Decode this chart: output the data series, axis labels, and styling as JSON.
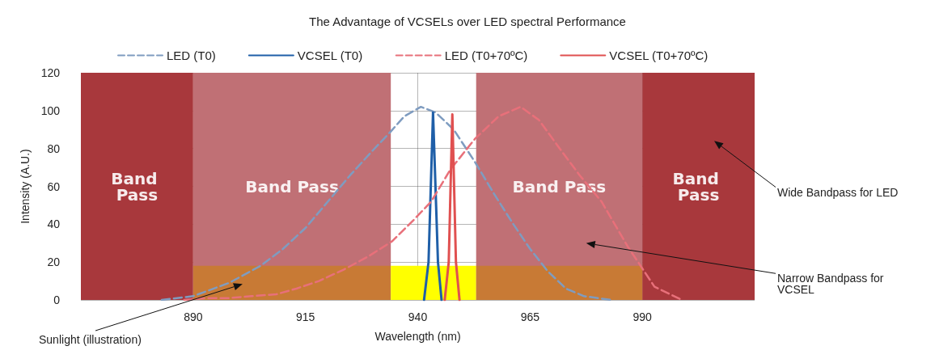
{
  "chart_data": {
    "type": "line",
    "title": "The Advantage of VCSELs over LED spectral Performance",
    "xlabel": "Wavelength (nm)",
    "ylabel": "Intensity (A.U.)",
    "xlim": [
      865,
      1015
    ],
    "xticks": [
      890,
      915,
      940,
      965,
      990
    ],
    "ylim": [
      0,
      120
    ],
    "yticks": [
      0,
      20,
      40,
      60,
      80,
      100,
      120
    ],
    "grid": true,
    "legend": "top",
    "marker": "none",
    "series": [
      {
        "name": "LED (T0)",
        "color": "#7f9cc0",
        "line_style": "dashed",
        "x": [
          883,
          890,
          898,
          905,
          910,
          915,
          920,
          925,
          930,
          934,
          937,
          940.7,
          944,
          948,
          952.7,
          957,
          961,
          965,
          969,
          973,
          977,
          983
        ],
        "values": [
          0,
          2,
          9,
          18,
          27,
          38,
          52,
          66,
          79,
          89,
          97,
          102,
          99,
          90,
          73,
          56,
          41,
          27,
          15,
          6,
          2,
          0
        ]
      },
      {
        "name": "VCSEL (T0)",
        "color": "#1f5fa8",
        "line_style": "solid",
        "x": [
          941.4,
          942.4,
          943.4,
          944.5,
          945.3
        ],
        "values": [
          0,
          20,
          99,
          20,
          0
        ]
      },
      {
        "name": "LED (T0+70ºC)",
        "color": "#e8707a",
        "line_style": "dashed",
        "x": [
          888,
          893,
          898,
          903,
          908.5,
          913,
          918,
          923.5,
          929,
          934.3,
          939,
          943,
          947.3,
          952.7,
          958,
          962.9,
          967,
          971.9,
          976,
          980.9,
          986.8,
          992.7,
          998.8
        ],
        "values": [
          0,
          1,
          1,
          2,
          3,
          6,
          10,
          16,
          23,
          31,
          42,
          52,
          69,
          85,
          97,
          102,
          95,
          79,
          66,
          52,
          28,
          7,
          0
        ]
      },
      {
        "name": "VCSEL (T0+70ºC)",
        "color": "#e05050",
        "line_style": "solid",
        "x": [
          946,
          946.9,
          947.7,
          948.5,
          949.3
        ],
        "values": [
          0,
          20,
          98,
          20,
          0
        ]
      },
      {
        "type": "area",
        "color": "#c87a35",
        "x": [
          890,
          934
        ],
        "values": [
          18,
          18
        ]
      },
      {
        "type": "area",
        "color": "#ffff00",
        "x": [
          934,
          953
        ],
        "values": [
          18,
          18
        ]
      },
      {
        "type": "area",
        "color": "#c87a35",
        "x": [
          953,
          990
        ],
        "values": [
          18,
          18
        ]
      }
    ],
    "bands": [
      {
        "axis": "x",
        "from": 865,
        "to": 890,
        "label": "Band Pass",
        "color": "#a8383c"
      },
      {
        "axis": "x",
        "from": 890,
        "to": 934,
        "label": "Band Pass",
        "color": "#c07075"
      },
      {
        "axis": "x",
        "from": 953,
        "to": 990,
        "label": "Band Pass",
        "color": "#c07075"
      },
      {
        "axis": "x",
        "from": 990,
        "to": 1015,
        "label": "Band Pass",
        "color": "#a8383c"
      }
    ],
    "annotations": [
      "Wide Bandpass for LED",
      "Narrow Bandpass for VCSEL",
      "Sunlight (illustration)"
    ]
  }
}
